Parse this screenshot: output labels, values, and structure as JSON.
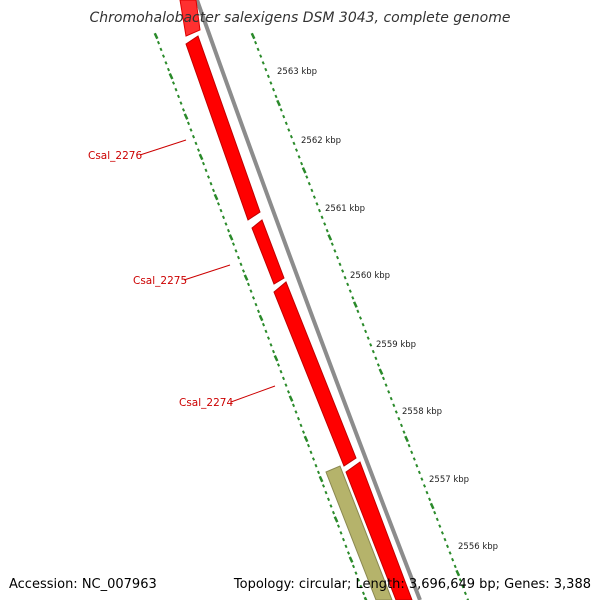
{
  "title": "Chromohalobacter salexigens DSM 3043, complete genome",
  "footer": {
    "accession": "Accession: NC_007963",
    "summary": "Topology: circular; Length: 3,696,649 bp; Genes: 3,388"
  },
  "colors": {
    "gene_forward": "#ff0000",
    "gene_other": "#b5b36b",
    "backbone": "#8c8c8c",
    "tick": "#2a8a2a",
    "label": "#cc0000"
  },
  "scale_labels": [
    "2563 kbp",
    "2562 kbp",
    "2561 kbp",
    "2560 kbp",
    "2559 kbp",
    "2558 kbp",
    "2557 kbp",
    "2556 kbp"
  ],
  "genes": [
    {
      "name": "Csal_2276",
      "color": "red"
    },
    {
      "name": "Csal_2275",
      "color": "red"
    },
    {
      "name": "Csal_2274",
      "color": "red"
    },
    {
      "name": "",
      "color": "olive"
    }
  ]
}
